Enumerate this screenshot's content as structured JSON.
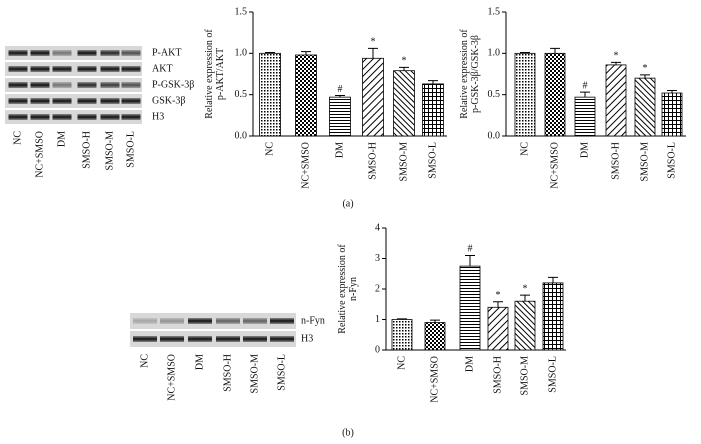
{
  "chart_data": [
    {
      "type": "bar",
      "ylabel": [
        "Relative expression of",
        "p-AKT/AKT"
      ],
      "categories": [
        "NC",
        "NC+SMSO",
        "DM",
        "SMSO-H",
        "SMSO-M",
        "SMSO-L"
      ],
      "values": [
        1.0,
        0.98,
        0.47,
        0.94,
        0.79,
        0.63
      ],
      "errors": [
        0.01,
        0.04,
        0.02,
        0.12,
        0.04,
        0.04
      ],
      "annotations": [
        null,
        null,
        "#",
        "*",
        "*",
        null
      ],
      "color": "#000000",
      "ylim": [
        0,
        1.5
      ],
      "yticks": [
        {
          "value": 0,
          "label": "0.0"
        },
        0.5,
        {
          "value": 1,
          "label": "1.0"
        },
        1.5
      ]
    },
    {
      "type": "bar",
      "ylabel": [
        "Relative expression of",
        "p-GSK-3β/GSK-3β"
      ],
      "categories": [
        "NC",
        "NC+SMSO",
        "DM",
        "SMSO-H",
        "SMSO-M",
        "SMSO-L"
      ],
      "values": [
        1.0,
        1.0,
        0.47,
        0.86,
        0.7,
        0.52
      ],
      "errors": [
        0.01,
        0.06,
        0.06,
        0.03,
        0.04,
        0.03
      ],
      "annotations": [
        null,
        null,
        "#",
        "*",
        "*",
        null
      ],
      "color": "#000000",
      "ylim": [
        0,
        1.5
      ],
      "yticks": [
        {
          "value": 0,
          "label": "0.0"
        },
        0.5,
        {
          "value": 1,
          "label": "1.0"
        },
        1.5
      ]
    },
    {
      "type": "bar",
      "ylabel": [
        "Relative expression of",
        "n-Fyn"
      ],
      "categories": [
        "NC",
        "NC+SMSO",
        "DM",
        "SMSO-H",
        "SMSO-M",
        "SMSO-L"
      ],
      "values": [
        1.0,
        0.9,
        2.75,
        1.4,
        1.6,
        2.2
      ],
      "errors": [
        0.02,
        0.08,
        0.35,
        0.18,
        0.2,
        0.18
      ],
      "annotations": [
        null,
        null,
        "#",
        "*",
        "*",
        null
      ],
      "color": "#000000",
      "ylim": [
        0,
        4
      ],
      "yticks": [
        0,
        1,
        2,
        3,
        4
      ]
    }
  ],
  "blots": [
    {
      "rows": [
        "P-AKT",
        "AKT",
        "P-GSK-3β",
        "GSK-3β",
        "H3"
      ],
      "lanes": [
        "NC",
        "NC+SMSO",
        "DM",
        "SMSO-H",
        "SMSO-M",
        "SMSO-L"
      ]
    },
    {
      "rows": [
        "n-Fyn",
        "H3"
      ],
      "lanes": [
        "NC",
        "NC+SMSO",
        "DM",
        "SMSO-H",
        "SMSO-M",
        "SMSO-L"
      ]
    }
  ],
  "panel_labels": [
    "(a)",
    "(b)"
  ]
}
